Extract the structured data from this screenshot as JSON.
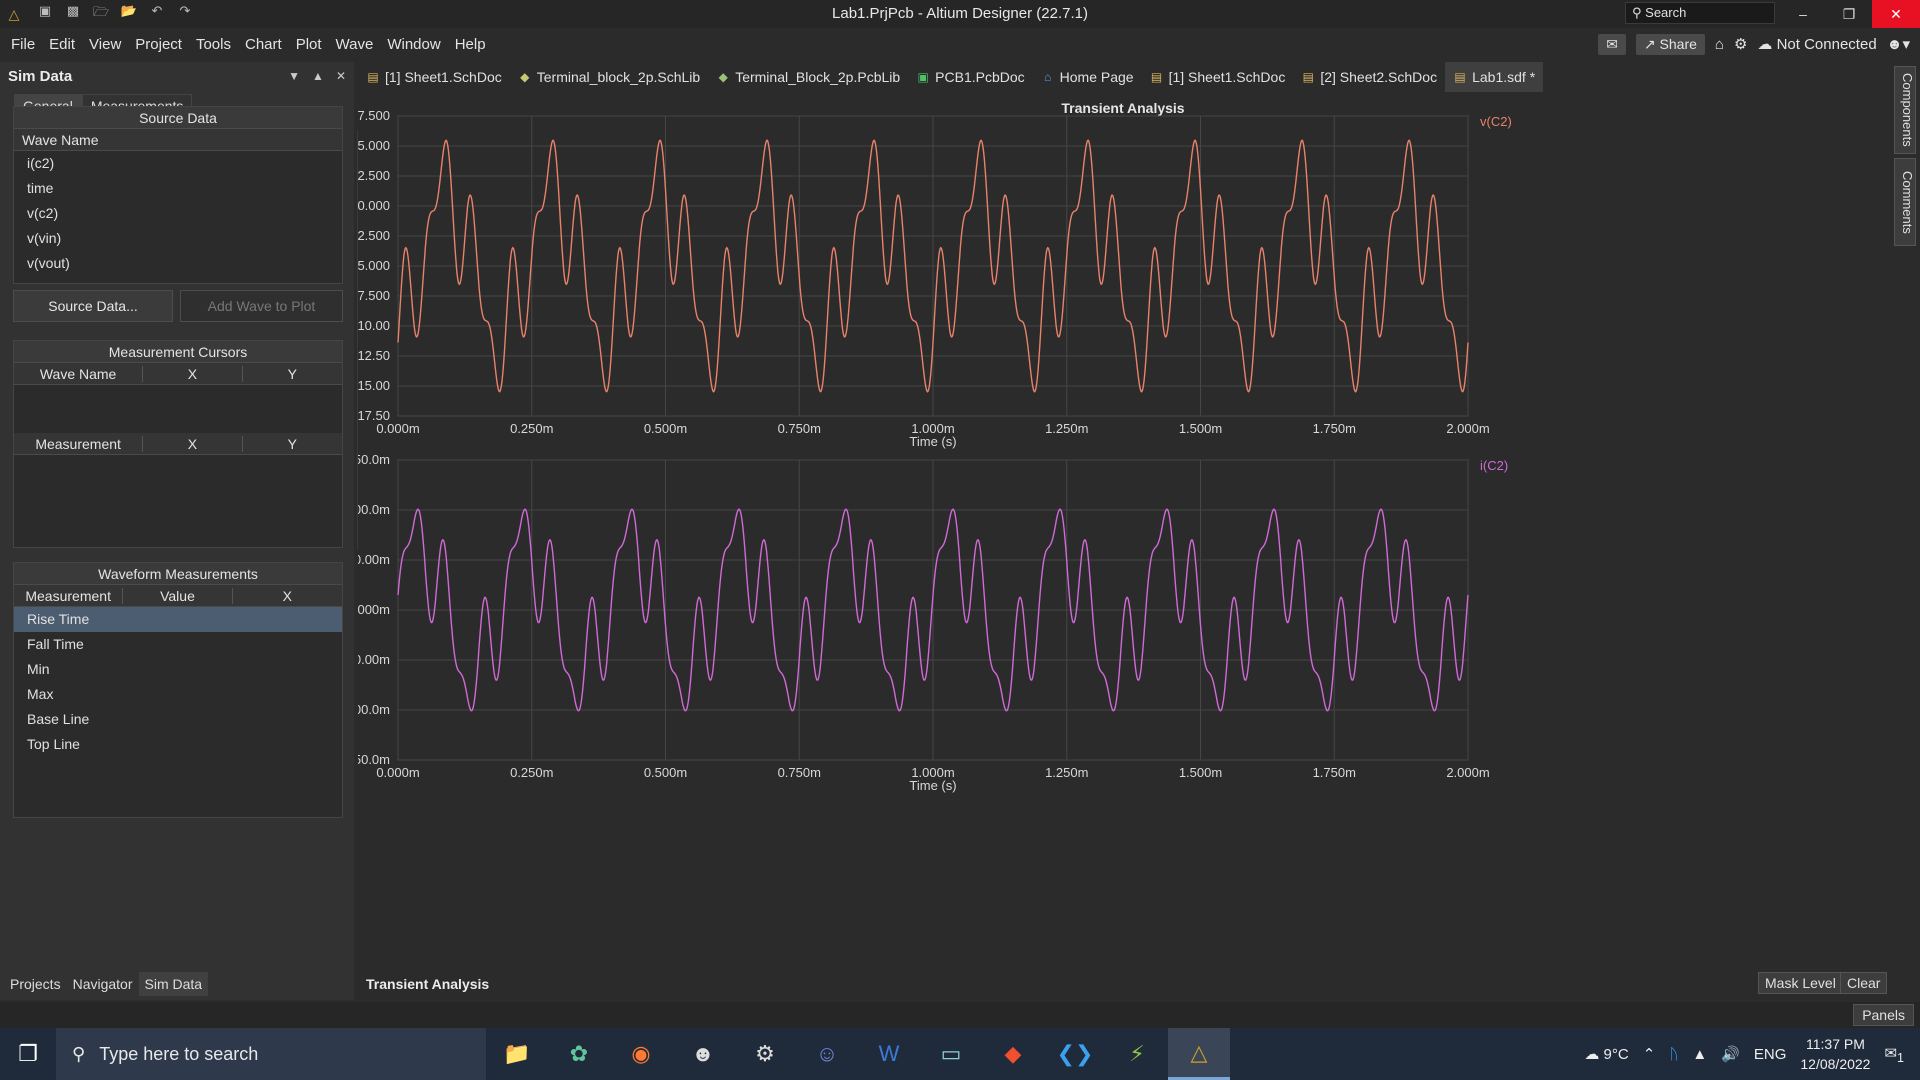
{
  "titlebar": {
    "title": "Lab1.PrjPcb - Altium Designer (22.7.1)",
    "search_placeholder": "Search"
  },
  "menu": {
    "items": [
      "File",
      "Edit",
      "View",
      "Project",
      "Tools",
      "Chart",
      "Plot",
      "Wave",
      "Window",
      "Help"
    ],
    "share": "Share",
    "connection": "Not Connected"
  },
  "panel": {
    "title": "Sim Data",
    "tabs": [
      "General",
      "Measurements"
    ],
    "source_data": {
      "header": "Source Data",
      "column": "Wave Name",
      "waves": [
        "i(c2)",
        "time",
        "v(c2)",
        "v(vin)",
        "v(vout)"
      ]
    },
    "buttons": {
      "source_data": "Source Data...",
      "add_wave": "Add Wave to Plot"
    },
    "cursors": {
      "header": "Measurement Cursors",
      "columns": [
        "Wave Name",
        "X",
        "Y"
      ],
      "measure_columns": [
        "Measurement",
        "X",
        "Y"
      ]
    },
    "waveform": {
      "header": "Waveform Measurements",
      "columns": [
        "Measurement",
        "Value",
        "X"
      ],
      "rows": [
        "Rise Time",
        "Fall Time",
        "Min",
        "Max",
        "Base Line",
        "Top Line"
      ]
    },
    "bottom_tabs": [
      "Projects",
      "Navigator",
      "Sim Data"
    ]
  },
  "doctabs": [
    {
      "label": "[1] Sheet1.SchDoc",
      "icon": "schdoc-icon"
    },
    {
      "label": "Terminal_block_2p.SchLib",
      "icon": "schlib-icon"
    },
    {
      "label": "Terminal_Block_2p.PcbLib",
      "icon": "pcblib-icon"
    },
    {
      "label": "PCB1.PcbDoc",
      "icon": "pcbdoc-icon"
    },
    {
      "label": "Home Page",
      "icon": "home-icon"
    },
    {
      "label": "[1] Sheet1.SchDoc",
      "icon": "schdoc-icon"
    },
    {
      "label": "[2] Sheet2.SchDoc",
      "icon": "schdoc-icon"
    },
    {
      "label": "Lab1.sdf *",
      "icon": "sdf-icon"
    }
  ],
  "plot": {
    "title": "Transient Analysis",
    "bottom_tab": "Transient Analysis",
    "mask_level": "Mask Level",
    "clear": "Clear"
  },
  "right_tabs": [
    "Components",
    "Comments"
  ],
  "panels_button": "Panels",
  "taskbar": {
    "search_placeholder": "Type here to search",
    "weather": "9°C",
    "lang": "ENG",
    "time": "11:37 PM",
    "date": "12/08/2022",
    "notifications": "1"
  },
  "chart_data": [
    {
      "type": "line",
      "title": "Transient Analysis",
      "xlabel": "Time (s)",
      "ylabel": "",
      "xlim": [
        0,
        2.0
      ],
      "ylim": [
        -17.5,
        7.5
      ],
      "x_unit": "ms",
      "x_ticks": [
        "0.000m",
        "0.250m",
        "0.500m",
        "0.750m",
        "1.000m",
        "1.250m",
        "1.500m",
        "1.750m",
        "2.000m"
      ],
      "y_ticks": [
        "7.500",
        "5.000",
        "2.500",
        "0.000",
        "-2.500",
        "-5.000",
        "-7.500",
        "-10.00",
        "-12.50",
        "-15.00",
        "-17.50"
      ],
      "grid": true,
      "legend_position": "top-right",
      "color": "#e8826a",
      "series": [
        {
          "name": "v(C2)",
          "period_ms": 0.2,
          "x_peaks_ms": [
            0.12,
            0.32,
            0.52,
            0.72,
            0.92,
            1.12,
            1.32,
            1.52,
            1.72,
            1.92
          ],
          "max": 6.5,
          "min": -16.5
        }
      ]
    },
    {
      "type": "line",
      "xlabel": "Time (s)",
      "ylabel": "",
      "xlim": [
        0,
        2.0
      ],
      "ylim": [
        -150,
        150
      ],
      "x_unit": "ms",
      "y_unit": "m",
      "x_ticks": [
        "0.000m",
        "0.250m",
        "0.500m",
        "0.750m",
        "1.000m",
        "1.250m",
        "1.500m",
        "1.750m",
        "2.000m"
      ],
      "y_ticks": [
        "150.0m",
        "100.0m",
        "50.00m",
        "0.000m",
        "-50.00m",
        "-100.0m",
        "-150.0m"
      ],
      "grid": true,
      "legend_position": "top-right",
      "color": "#d06ad6",
      "series": [
        {
          "name": "i(C2)",
          "period_ms": 0.2,
          "max": 135,
          "min": -135
        }
      ]
    }
  ]
}
